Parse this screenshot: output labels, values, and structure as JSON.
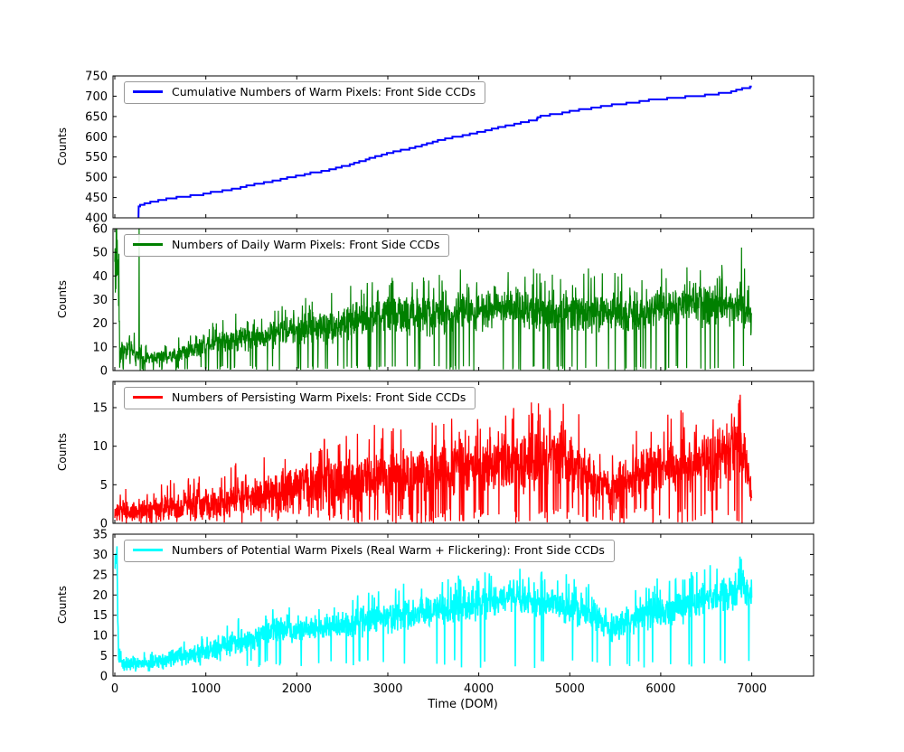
{
  "figure": {
    "xlabel": "Time (DOM)",
    "xticks": [
      0,
      1000,
      2000,
      3000,
      4000,
      5000,
      6000,
      7000
    ],
    "xlim": [
      -20,
      7680
    ],
    "background": "#ffffff",
    "axis_color": "#000000"
  },
  "chart_data": [
    {
      "type": "line",
      "legend": "Cumulative Numbers of Warm Pixels: Front Side CCDs",
      "color": "#0000ff",
      "ylabel": "Counts",
      "ylim": [
        400,
        750
      ],
      "yticks": [
        400,
        450,
        500,
        550,
        600,
        650,
        700,
        750
      ],
      "style": "cumulative-step",
      "points": [
        [
          260,
          400
        ],
        [
          262,
          430
        ],
        [
          350,
          436
        ],
        [
          500,
          443
        ],
        [
          700,
          450
        ],
        [
          900,
          455
        ],
        [
          1000,
          459
        ],
        [
          1100,
          463
        ],
        [
          1200,
          466
        ],
        [
          1300,
          470
        ],
        [
          1400,
          476
        ],
        [
          1500,
          480
        ],
        [
          1600,
          484
        ],
        [
          1700,
          489
        ],
        [
          1800,
          493
        ],
        [
          1900,
          498
        ],
        [
          2000,
          503
        ],
        [
          2100,
          507
        ],
        [
          2200,
          511
        ],
        [
          2300,
          515
        ],
        [
          2400,
          520
        ],
        [
          2500,
          526
        ],
        [
          2600,
          532
        ],
        [
          2700,
          539
        ],
        [
          2800,
          546
        ],
        [
          2900,
          552
        ],
        [
          3000,
          558
        ],
        [
          3100,
          563
        ],
        [
          3200,
          568
        ],
        [
          3300,
          574
        ],
        [
          3400,
          580
        ],
        [
          3500,
          586
        ],
        [
          3600,
          592
        ],
        [
          3700,
          597
        ],
        [
          3800,
          601
        ],
        [
          3900,
          606
        ],
        [
          4000,
          611
        ],
        [
          4100,
          616
        ],
        [
          4200,
          621
        ],
        [
          4300,
          626
        ],
        [
          4400,
          631
        ],
        [
          4500,
          636
        ],
        [
          4620,
          639
        ],
        [
          4650,
          648
        ],
        [
          4700,
          650
        ],
        [
          4800,
          654
        ],
        [
          4900,
          658
        ],
        [
          5000,
          662
        ],
        [
          5100,
          665
        ],
        [
          5200,
          668
        ],
        [
          5300,
          672
        ],
        [
          5400,
          675
        ],
        [
          5500,
          678
        ],
        [
          5600,
          681
        ],
        [
          5700,
          684
        ],
        [
          5800,
          687
        ],
        [
          5900,
          690
        ],
        [
          6000,
          692
        ],
        [
          6100,
          694
        ],
        [
          6200,
          696
        ],
        [
          6300,
          698
        ],
        [
          6400,
          700
        ],
        [
          6500,
          702
        ],
        [
          6600,
          704
        ],
        [
          6700,
          707
        ],
        [
          6800,
          712
        ],
        [
          6900,
          718
        ],
        [
          6950,
          721
        ],
        [
          7000,
          722
        ]
      ]
    },
    {
      "type": "line",
      "legend": "Numbers of Daily Warm Pixels: Front Side CCDs",
      "color": "#008000",
      "ylabel": "Counts",
      "ylim": [
        0,
        60
      ],
      "yticks": [
        0,
        10,
        20,
        30,
        40,
        50,
        60
      ],
      "style": "noisy",
      "seed": 1234,
      "x_start": 0,
      "x_end": 7000,
      "x_step": 3,
      "dip_prob": 0.06,
      "dip_floor": 0,
      "trend": [
        [
          0,
          48,
          22
        ],
        [
          40,
          46,
          22
        ],
        [
          55,
          8,
          5
        ],
        [
          150,
          9,
          6
        ],
        [
          300,
          5,
          3
        ],
        [
          600,
          6,
          3
        ],
        [
          900,
          10,
          4
        ],
        [
          1200,
          13,
          5
        ],
        [
          1500,
          14,
          6
        ],
        [
          1800,
          16,
          6
        ],
        [
          2100,
          18,
          7
        ],
        [
          2400,
          19,
          7
        ],
        [
          2700,
          22,
          8
        ],
        [
          3000,
          24,
          8
        ],
        [
          3300,
          23,
          8
        ],
        [
          3600,
          24,
          9
        ],
        [
          3900,
          26,
          9
        ],
        [
          4200,
          27,
          9
        ],
        [
          4500,
          26,
          9
        ],
        [
          4800,
          25,
          9
        ],
        [
          5100,
          26,
          9
        ],
        [
          5400,
          24,
          9
        ],
        [
          5700,
          25,
          9
        ],
        [
          6000,
          27,
          9
        ],
        [
          6300,
          27,
          9
        ],
        [
          6600,
          28,
          9
        ],
        [
          6900,
          28,
          9
        ],
        [
          7000,
          24,
          9
        ]
      ],
      "spikes": [
        [
          268,
          60
        ],
        [
          6888,
          52
        ]
      ]
    },
    {
      "type": "line",
      "legend": "Numbers of Persisting Warm Pixels: Front Side CCDs",
      "color": "#ff0000",
      "ylabel": "Counts",
      "ylim": [
        0,
        18.4
      ],
      "yticks": [
        0,
        5,
        10,
        15
      ],
      "style": "noisy",
      "seed": 77,
      "x_start": 0,
      "x_end": 7000,
      "x_step": 3,
      "dip_prob": 0.09,
      "dip_floor": 0,
      "trend": [
        [
          0,
          1.5,
          1.5
        ],
        [
          300,
          1.5,
          1.5
        ],
        [
          600,
          2,
          1.8
        ],
        [
          900,
          2.5,
          2
        ],
        [
          1200,
          3,
          2.2
        ],
        [
          1500,
          3.5,
          2.5
        ],
        [
          1800,
          4.5,
          2.8
        ],
        [
          2100,
          5,
          3
        ],
        [
          2400,
          5,
          3
        ],
        [
          2700,
          6,
          3.2
        ],
        [
          3000,
          6.5,
          3.5
        ],
        [
          3300,
          6,
          3.5
        ],
        [
          3600,
          7,
          3.5
        ],
        [
          3900,
          7.5,
          3.8
        ],
        [
          4200,
          8,
          3.8
        ],
        [
          4500,
          8,
          4
        ],
        [
          4800,
          8.5,
          4
        ],
        [
          5000,
          8,
          4
        ],
        [
          5300,
          5.5,
          2.5
        ],
        [
          5500,
          5,
          2.5
        ],
        [
          5800,
          7,
          3.5
        ],
        [
          6100,
          7.5,
          3.5
        ],
        [
          6400,
          8,
          4
        ],
        [
          6700,
          9,
          4
        ],
        [
          6850,
          10.5,
          4.5
        ],
        [
          6950,
          8,
          4
        ],
        [
          7000,
          3,
          2
        ]
      ],
      "spikes": [
        [
          4930,
          15.5
        ],
        [
          6860,
          16
        ]
      ]
    },
    {
      "type": "line",
      "legend": "Numbers of Potential Warm Pixels (Real Warm + Flickering): Front Side CCDs",
      "color": "#00ffff",
      "ylabel": "Counts",
      "ylim": [
        0,
        35
      ],
      "yticks": [
        0,
        5,
        10,
        15,
        20,
        25,
        30,
        35
      ],
      "style": "noisy",
      "seed": 2024,
      "x_start": 0,
      "x_end": 7000,
      "x_step": 3,
      "dip_prob": 0.02,
      "dip_floor": 2,
      "trend": [
        [
          0,
          27,
          4
        ],
        [
          25,
          27,
          4
        ],
        [
          40,
          5,
          3
        ],
        [
          100,
          3,
          2
        ],
        [
          400,
          3,
          2
        ],
        [
          700,
          5,
          2.5
        ],
        [
          1000,
          6,
          2.5
        ],
        [
          1300,
          8,
          3
        ],
        [
          1600,
          10,
          3
        ],
        [
          1750,
          12,
          3
        ],
        [
          2000,
          11,
          3
        ],
        [
          2300,
          12,
          3
        ],
        [
          2600,
          13,
          3.5
        ],
        [
          2900,
          14,
          3.5
        ],
        [
          3200,
          15,
          4
        ],
        [
          3500,
          16,
          4
        ],
        [
          3800,
          17,
          4
        ],
        [
          4100,
          18,
          4
        ],
        [
          4400,
          20,
          4
        ],
        [
          4700,
          18,
          4
        ],
        [
          5000,
          17,
          4
        ],
        [
          5300,
          15,
          4
        ],
        [
          5450,
          11,
          3.5
        ],
        [
          5600,
          13,
          3.5
        ],
        [
          5900,
          16,
          4
        ],
        [
          6200,
          17,
          4
        ],
        [
          6500,
          19,
          4
        ],
        [
          6800,
          21,
          4.5
        ],
        [
          6900,
          23,
          4.5
        ],
        [
          7000,
          18,
          4
        ]
      ],
      "spikes": [
        [
          10,
          29.5
        ],
        [
          6870,
          29.5
        ]
      ]
    }
  ]
}
